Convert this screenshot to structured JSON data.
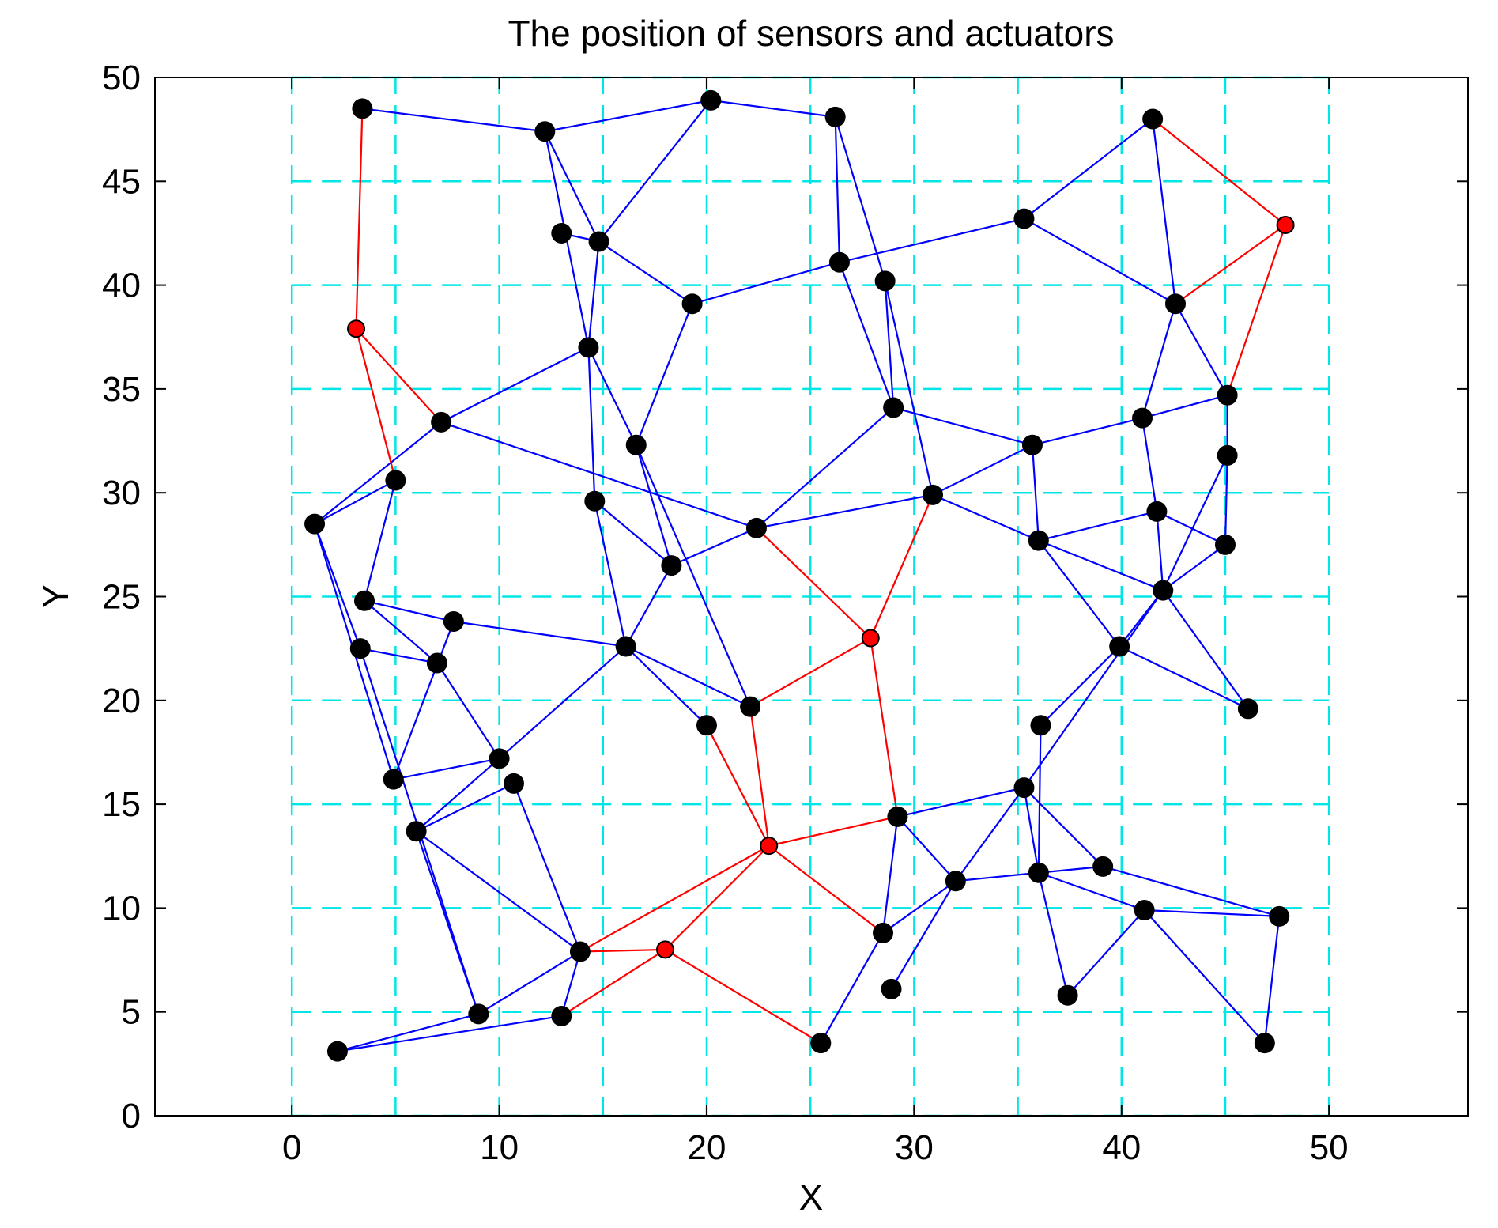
{
  "chart_data": {
    "type": "scatter",
    "title": "The position of sensors and actuators",
    "xlabel": "X",
    "ylabel": "Y",
    "xlim": [
      -6.6,
      56.7
    ],
    "ylim": [
      0,
      50
    ],
    "xticks": [
      "0",
      "10",
      "20",
      "30",
      "40",
      "50"
    ],
    "yticks": [
      "0",
      "5",
      "10",
      "15",
      "20",
      "25",
      "30",
      "35",
      "40",
      "45",
      "50"
    ],
    "grid": {
      "style": "dashed",
      "color": "#00e5e5",
      "x": [
        0,
        5,
        10,
        15,
        20,
        25,
        30,
        35,
        40,
        45,
        50
      ],
      "y": [
        0,
        5,
        10,
        15,
        20,
        25,
        30,
        35,
        40,
        45,
        50
      ]
    },
    "legend": "none",
    "colors": {
      "sensor": "#000000",
      "actuator": "#ff0000",
      "sensor_link": "#0000ff",
      "actuator_link": "#ff0000"
    },
    "sensors": [
      [
        3.4,
        48.5
      ],
      [
        12.2,
        47.4
      ],
      [
        20.2,
        48.9
      ],
      [
        26.2,
        48.1
      ],
      [
        41.5,
        48.0
      ],
      [
        13.0,
        42.5
      ],
      [
        14.8,
        42.1
      ],
      [
        26.4,
        41.1
      ],
      [
        28.6,
        40.2
      ],
      [
        35.3,
        43.2
      ],
      [
        42.6,
        39.1
      ],
      [
        19.3,
        39.1
      ],
      [
        14.3,
        37.0
      ],
      [
        7.2,
        33.4
      ],
      [
        29.0,
        34.1
      ],
      [
        35.7,
        32.3
      ],
      [
        41.0,
        33.6
      ],
      [
        45.1,
        34.7
      ],
      [
        45.1,
        31.8
      ],
      [
        16.6,
        32.3
      ],
      [
        5.0,
        30.6
      ],
      [
        1.1,
        28.5
      ],
      [
        14.6,
        29.6
      ],
      [
        22.4,
        28.3
      ],
      [
        30.9,
        29.9
      ],
      [
        36.0,
        27.7
      ],
      [
        41.7,
        29.1
      ],
      [
        45.0,
        27.5
      ],
      [
        18.3,
        26.5
      ],
      [
        42.0,
        25.3
      ],
      [
        3.5,
        24.8
      ],
      [
        7.8,
        23.8
      ],
      [
        3.3,
        22.5
      ],
      [
        7.0,
        21.8
      ],
      [
        16.1,
        22.6
      ],
      [
        39.9,
        22.6
      ],
      [
        46.1,
        19.6
      ],
      [
        22.1,
        19.7
      ],
      [
        20.0,
        18.8
      ],
      [
        36.1,
        18.8
      ],
      [
        10.0,
        17.2
      ],
      [
        4.9,
        16.2
      ],
      [
        10.7,
        16.0
      ],
      [
        35.3,
        15.8
      ],
      [
        6.0,
        13.7
      ],
      [
        29.2,
        14.4
      ],
      [
        36.0,
        11.7
      ],
      [
        39.1,
        12.0
      ],
      [
        32.0,
        11.3
      ],
      [
        41.1,
        9.9
      ],
      [
        47.6,
        9.6
      ],
      [
        13.9,
        7.9
      ],
      [
        28.5,
        8.8
      ],
      [
        37.4,
        5.8
      ],
      [
        28.9,
        6.1
      ],
      [
        9.0,
        4.9
      ],
      [
        13.0,
        4.8
      ],
      [
        2.2,
        3.1
      ],
      [
        25.5,
        3.5
      ],
      [
        46.9,
        3.5
      ]
    ],
    "actuators": [
      [
        3.1,
        37.9
      ],
      [
        47.9,
        42.9
      ],
      [
        27.9,
        23.0
      ],
      [
        23.0,
        13.0
      ],
      [
        18.0,
        8.0
      ]
    ],
    "sensor_links": [
      [
        [
          3.4,
          48.5
        ],
        [
          12.2,
          47.4
        ]
      ],
      [
        [
          12.2,
          47.4
        ],
        [
          20.2,
          48.9
        ]
      ],
      [
        [
          20.2,
          48.9
        ],
        [
          26.2,
          48.1
        ]
      ],
      [
        [
          12.2,
          47.4
        ],
        [
          14.8,
          42.1
        ]
      ],
      [
        [
          20.2,
          48.9
        ],
        [
          14.8,
          42.1
        ]
      ],
      [
        [
          12.2,
          47.4
        ],
        [
          14.3,
          37.0
        ]
      ],
      [
        [
          13.0,
          42.5
        ],
        [
          14.8,
          42.1
        ]
      ],
      [
        [
          14.8,
          42.1
        ],
        [
          14.3,
          37.0
        ]
      ],
      [
        [
          14.8,
          42.1
        ],
        [
          19.3,
          39.1
        ]
      ],
      [
        [
          26.2,
          48.1
        ],
        [
          26.4,
          41.1
        ]
      ],
      [
        [
          26.2,
          48.1
        ],
        [
          28.6,
          40.2
        ]
      ],
      [
        [
          19.3,
          39.1
        ],
        [
          26.4,
          41.1
        ]
      ],
      [
        [
          26.4,
          41.1
        ],
        [
          35.3,
          43.2
        ]
      ],
      [
        [
          26.4,
          41.1
        ],
        [
          29.0,
          34.1
        ]
      ],
      [
        [
          28.6,
          40.2
        ],
        [
          29.0,
          34.1
        ]
      ],
      [
        [
          28.6,
          40.2
        ],
        [
          30.9,
          29.9
        ]
      ],
      [
        [
          35.3,
          43.2
        ],
        [
          41.5,
          48.0
        ]
      ],
      [
        [
          35.3,
          43.2
        ],
        [
          42.6,
          39.1
        ]
      ],
      [
        [
          41.5,
          48.0
        ],
        [
          42.6,
          39.1
        ]
      ],
      [
        [
          42.6,
          39.1
        ],
        [
          41.0,
          33.6
        ]
      ],
      [
        [
          42.6,
          39.1
        ],
        [
          45.1,
          34.7
        ]
      ],
      [
        [
          14.3,
          37.0
        ],
        [
          7.2,
          33.4
        ]
      ],
      [
        [
          14.3,
          37.0
        ],
        [
          14.6,
          29.6
        ]
      ],
      [
        [
          14.3,
          37.0
        ],
        [
          16.6,
          32.3
        ]
      ],
      [
        [
          19.3,
          39.1
        ],
        [
          16.6,
          32.3
        ]
      ],
      [
        [
          7.2,
          33.4
        ],
        [
          1.1,
          28.5
        ]
      ],
      [
        [
          7.2,
          33.4
        ],
        [
          22.4,
          28.3
        ]
      ],
      [
        [
          5.0,
          30.6
        ],
        [
          1.1,
          28.5
        ]
      ],
      [
        [
          5.0,
          30.6
        ],
        [
          3.5,
          24.8
        ]
      ],
      [
        [
          29.0,
          34.1
        ],
        [
          35.7,
          32.3
        ]
      ],
      [
        [
          29.0,
          34.1
        ],
        [
          22.4,
          28.3
        ]
      ],
      [
        [
          30.9,
          29.9
        ],
        [
          35.7,
          32.3
        ]
      ],
      [
        [
          30.9,
          29.9
        ],
        [
          22.4,
          28.3
        ]
      ],
      [
        [
          30.9,
          29.9
        ],
        [
          36.0,
          27.7
        ]
      ],
      [
        [
          35.7,
          32.3
        ],
        [
          41.0,
          33.6
        ]
      ],
      [
        [
          35.7,
          32.3
        ],
        [
          36.0,
          27.7
        ]
      ],
      [
        [
          41.0,
          33.6
        ],
        [
          45.1,
          34.7
        ]
      ],
      [
        [
          41.0,
          33.6
        ],
        [
          41.7,
          29.1
        ]
      ],
      [
        [
          45.1,
          34.7
        ],
        [
          45.1,
          31.8
        ]
      ],
      [
        [
          45.1,
          31.8
        ],
        [
          45.0,
          27.5
        ]
      ],
      [
        [
          45.1,
          31.8
        ],
        [
          42.0,
          25.3
        ]
      ],
      [
        [
          16.6,
          32.3
        ],
        [
          18.3,
          26.5
        ]
      ],
      [
        [
          16.6,
          32.3
        ],
        [
          22.1,
          19.7
        ]
      ],
      [
        [
          14.6,
          29.6
        ],
        [
          18.3,
          26.5
        ]
      ],
      [
        [
          14.6,
          29.6
        ],
        [
          16.1,
          22.6
        ]
      ],
      [
        [
          22.4,
          28.3
        ],
        [
          18.3,
          26.5
        ]
      ],
      [
        [
          36.0,
          27.7
        ],
        [
          41.7,
          29.1
        ]
      ],
      [
        [
          36.0,
          27.7
        ],
        [
          42.0,
          25.3
        ]
      ],
      [
        [
          36.0,
          27.7
        ],
        [
          39.9,
          22.6
        ]
      ],
      [
        [
          41.7,
          29.1
        ],
        [
          45.0,
          27.5
        ]
      ],
      [
        [
          41.7,
          29.1
        ],
        [
          42.0,
          25.3
        ]
      ],
      [
        [
          45.0,
          27.5
        ],
        [
          42.0,
          25.3
        ]
      ],
      [
        [
          18.3,
          26.5
        ],
        [
          16.1,
          22.6
        ]
      ],
      [
        [
          1.1,
          28.5
        ],
        [
          3.3,
          22.5
        ]
      ],
      [
        [
          1.1,
          28.5
        ],
        [
          4.9,
          16.2
        ]
      ],
      [
        [
          3.5,
          24.8
        ],
        [
          7.8,
          23.8
        ]
      ],
      [
        [
          3.5,
          24.8
        ],
        [
          7.0,
          21.8
        ]
      ],
      [
        [
          7.8,
          23.8
        ],
        [
          16.1,
          22.6
        ]
      ],
      [
        [
          7.8,
          23.8
        ],
        [
          4.9,
          16.2
        ]
      ],
      [
        [
          3.3,
          22.5
        ],
        [
          7.0,
          21.8
        ]
      ],
      [
        [
          7.0,
          21.8
        ],
        [
          10.0,
          17.2
        ]
      ],
      [
        [
          16.1,
          22.6
        ],
        [
          10.0,
          17.2
        ]
      ],
      [
        [
          16.1,
          22.6
        ],
        [
          20.0,
          18.8
        ]
      ],
      [
        [
          16.1,
          22.6
        ],
        [
          22.1,
          19.7
        ]
      ],
      [
        [
          42.0,
          25.3
        ],
        [
          39.9,
          22.6
        ]
      ],
      [
        [
          42.0,
          25.3
        ],
        [
          46.1,
          19.6
        ]
      ],
      [
        [
          42.0,
          25.3
        ],
        [
          35.3,
          15.8
        ]
      ],
      [
        [
          39.9,
          22.6
        ],
        [
          46.1,
          19.6
        ]
      ],
      [
        [
          39.9,
          22.6
        ],
        [
          36.1,
          18.8
        ]
      ],
      [
        [
          36.1,
          18.8
        ],
        [
          36.0,
          11.7
        ]
      ],
      [
        [
          10.0,
          17.2
        ],
        [
          4.9,
          16.2
        ]
      ],
      [
        [
          10.0,
          17.2
        ],
        [
          6.0,
          13.7
        ]
      ],
      [
        [
          10.7,
          16.0
        ],
        [
          6.0,
          13.7
        ]
      ],
      [
        [
          10.7,
          16.0
        ],
        [
          13.9,
          7.9
        ]
      ],
      [
        [
          6.0,
          13.7
        ],
        [
          13.9,
          7.9
        ]
      ],
      [
        [
          35.3,
          15.8
        ],
        [
          29.2,
          14.4
        ]
      ],
      [
        [
          35.3,
          15.8
        ],
        [
          36.0,
          11.7
        ]
      ],
      [
        [
          35.3,
          15.8
        ],
        [
          39.1,
          12.0
        ]
      ],
      [
        [
          35.3,
          15.8
        ],
        [
          32.0,
          11.3
        ]
      ],
      [
        [
          29.2,
          14.4
        ],
        [
          32.0,
          11.3
        ]
      ],
      [
        [
          29.2,
          14.4
        ],
        [
          28.5,
          8.8
        ]
      ],
      [
        [
          32.0,
          11.3
        ],
        [
          36.0,
          11.7
        ]
      ],
      [
        [
          32.0,
          11.3
        ],
        [
          28.5,
          8.8
        ]
      ],
      [
        [
          32.0,
          11.3
        ],
        [
          28.9,
          6.1
        ]
      ],
      [
        [
          36.0,
          11.7
        ],
        [
          39.1,
          12.0
        ]
      ],
      [
        [
          36.0,
          11.7
        ],
        [
          41.1,
          9.9
        ]
      ],
      [
        [
          36.0,
          11.7
        ],
        [
          37.4,
          5.8
        ]
      ],
      [
        [
          39.1,
          12.0
        ],
        [
          47.6,
          9.6
        ]
      ],
      [
        [
          41.1,
          9.9
        ],
        [
          47.6,
          9.6
        ]
      ],
      [
        [
          41.1,
          9.9
        ],
        [
          37.4,
          5.8
        ]
      ],
      [
        [
          41.1,
          9.9
        ],
        [
          46.9,
          3.5
        ]
      ],
      [
        [
          47.6,
          9.6
        ],
        [
          46.9,
          3.5
        ]
      ],
      [
        [
          28.5,
          8.8
        ],
        [
          25.5,
          3.5
        ]
      ],
      [
        [
          3.3,
          22.5
        ],
        [
          9.0,
          4.9
        ]
      ],
      [
        [
          6.0,
          13.7
        ],
        [
          9.0,
          4.9
        ]
      ],
      [
        [
          13.9,
          7.9
        ],
        [
          9.0,
          4.9
        ]
      ],
      [
        [
          13.9,
          7.9
        ],
        [
          13.0,
          4.8
        ]
      ],
      [
        [
          2.2,
          3.1
        ],
        [
          9.0,
          4.9
        ]
      ],
      [
        [
          2.2,
          3.1
        ],
        [
          13.0,
          4.8
        ]
      ]
    ],
    "actuator_links": [
      [
        [
          3.1,
          37.9
        ],
        [
          3.4,
          48.5
        ]
      ],
      [
        [
          3.1,
          37.9
        ],
        [
          7.2,
          33.4
        ]
      ],
      [
        [
          3.1,
          37.9
        ],
        [
          5.0,
          30.6
        ]
      ],
      [
        [
          47.9,
          42.9
        ],
        [
          41.5,
          48.0
        ]
      ],
      [
        [
          47.9,
          42.9
        ],
        [
          42.6,
          39.1
        ]
      ],
      [
        [
          47.9,
          42.9
        ],
        [
          45.1,
          34.7
        ]
      ],
      [
        [
          27.9,
          23.0
        ],
        [
          22.4,
          28.3
        ]
      ],
      [
        [
          27.9,
          23.0
        ],
        [
          30.9,
          29.9
        ]
      ],
      [
        [
          27.9,
          23.0
        ],
        [
          22.1,
          19.7
        ]
      ],
      [
        [
          27.9,
          23.0
        ],
        [
          29.2,
          14.4
        ]
      ],
      [
        [
          23.0,
          13.0
        ],
        [
          22.1,
          19.7
        ]
      ],
      [
        [
          23.0,
          13.0
        ],
        [
          20.0,
          18.8
        ]
      ],
      [
        [
          23.0,
          13.0
        ],
        [
          29.2,
          14.4
        ]
      ],
      [
        [
          23.0,
          13.0
        ],
        [
          28.5,
          8.8
        ]
      ],
      [
        [
          23.0,
          13.0
        ],
        [
          13.9,
          7.9
        ]
      ],
      [
        [
          23.0,
          13.0
        ],
        [
          18.0,
          8.0
        ]
      ],
      [
        [
          18.0,
          8.0
        ],
        [
          13.9,
          7.9
        ]
      ],
      [
        [
          18.0,
          8.0
        ],
        [
          13.0,
          4.8
        ]
      ],
      [
        [
          18.0,
          8.0
        ],
        [
          25.5,
          3.5
        ]
      ]
    ]
  }
}
